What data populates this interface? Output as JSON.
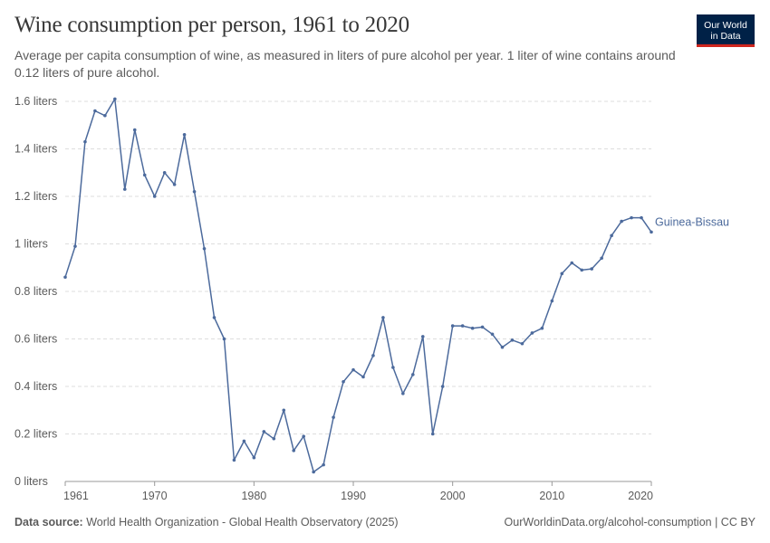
{
  "header": {
    "title": "Wine consumption per person, 1961 to 2020",
    "subtitle": "Average per capita consumption of wine, as measured in liters of pure alcohol per year. 1 liter of wine contains around 0.12 liters of pure alcohol."
  },
  "logo": {
    "line1": "Our World",
    "line2": "in Data"
  },
  "footer": {
    "source_label": "Data source:",
    "source_text": "World Health Organization - Global Health Observatory (2025)",
    "url_text": "OurWorldinData.org/alcohol-consumption | CC BY"
  },
  "colors": {
    "series": "#4c6a9c",
    "grid": "#dddddd",
    "axis": "#999999"
  },
  "chart_data": {
    "type": "line",
    "title": "Wine consumption per person, 1961 to 2020",
    "xlabel": "",
    "ylabel": "",
    "xlim": [
      1961,
      2020
    ],
    "ylim": [
      0,
      1.6
    ],
    "x_ticks": [
      1961,
      1970,
      1980,
      1990,
      2000,
      2010,
      2020
    ],
    "y_ticks": [
      0,
      0.2,
      0.4,
      0.6,
      0.8,
      1,
      1.2,
      1.4,
      1.6
    ],
    "y_tick_labels": [
      "0 liters",
      "0.2 liters",
      "0.4 liters",
      "0.6 liters",
      "0.8 liters",
      "1 liters",
      "1.2 liters",
      "1.4 liters",
      "1.6 liters"
    ],
    "grid": true,
    "series": [
      {
        "name": "Guinea-Bissau",
        "x": [
          1961,
          1962,
          1963,
          1964,
          1965,
          1966,
          1967,
          1968,
          1969,
          1970,
          1971,
          1972,
          1973,
          1974,
          1975,
          1976,
          1977,
          1978,
          1979,
          1980,
          1981,
          1982,
          1983,
          1984,
          1985,
          1986,
          1987,
          1988,
          1989,
          1990,
          1991,
          1992,
          1993,
          1994,
          1995,
          1996,
          1997,
          1998,
          1999,
          2000,
          2001,
          2002,
          2003,
          2004,
          2005,
          2006,
          2007,
          2008,
          2009,
          2010,
          2011,
          2012,
          2013,
          2014,
          2015,
          2016,
          2017,
          2018,
          2019,
          2020
        ],
        "values": [
          0.86,
          0.99,
          1.43,
          1.56,
          1.54,
          1.61,
          1.23,
          1.48,
          1.29,
          1.2,
          1.3,
          1.25,
          1.46,
          1.22,
          0.98,
          0.69,
          0.6,
          0.09,
          0.17,
          0.1,
          0.21,
          0.18,
          0.3,
          0.13,
          0.19,
          0.04,
          0.07,
          0.27,
          0.42,
          0.47,
          0.44,
          0.53,
          0.69,
          0.48,
          0.37,
          0.45,
          0.61,
          0.2,
          0.4,
          0.655,
          0.655,
          0.645,
          0.65,
          0.62,
          0.565,
          0.595,
          0.58,
          0.625,
          0.645,
          0.76,
          0.875,
          0.92,
          0.89,
          0.895,
          0.94,
          1.035,
          1.095,
          1.11,
          1.11,
          1.05
        ]
      }
    ]
  }
}
